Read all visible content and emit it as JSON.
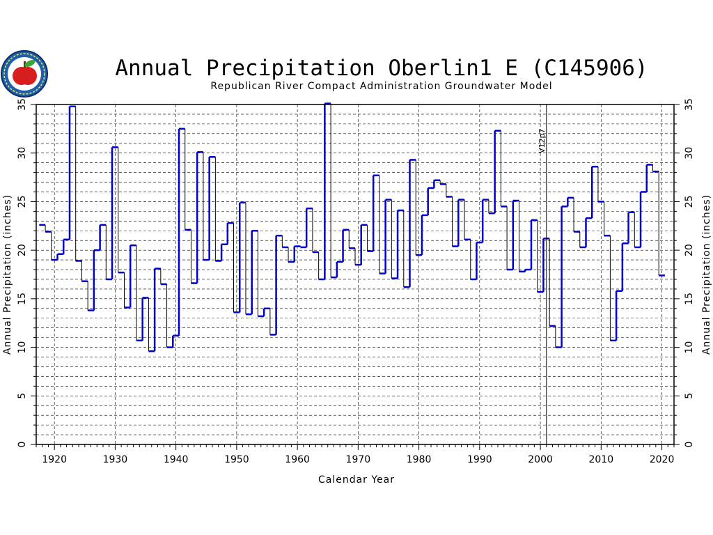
{
  "chart_data": {
    "type": "line",
    "step": true,
    "title": "Annual Precipitation Oberlin1 E (C145906)",
    "subtitle": "Republican River Compact Administration Groundwater Model",
    "xlabel": "Calendar Year",
    "ylabel": "Annual Precipitation (inches)",
    "ylabel_right": "Annual Precipitation (inches)",
    "xlim": [
      1917,
      2022
    ],
    "ylim": [
      0,
      35
    ],
    "x_ticks": [
      1920,
      1930,
      1940,
      1950,
      1960,
      1970,
      1980,
      1990,
      2000,
      2010,
      2020
    ],
    "y_ticks": [
      0,
      5,
      10,
      15,
      20,
      25,
      30,
      35
    ],
    "grid": true,
    "annotation": {
      "label": "V12p7",
      "x": 2001
    },
    "colors": {
      "series_before": "#0000cc",
      "series_after": "#000000",
      "frame": "#000000"
    },
    "logo": "apple-seal-icon",
    "series": [
      {
        "x": [
          1918,
          1919,
          1920,
          1921,
          1922,
          1923,
          1924,
          1925,
          1926,
          1927,
          1928,
          1929,
          1930,
          1931,
          1932,
          1933,
          1934,
          1935,
          1936,
          1937,
          1938,
          1939,
          1940,
          1941,
          1942,
          1943,
          1944,
          1945,
          1946,
          1947,
          1948,
          1949,
          1950,
          1951,
          1952,
          1953,
          1954,
          1955,
          1956,
          1957,
          1958,
          1959,
          1960,
          1961,
          1962,
          1963,
          1964,
          1965,
          1966,
          1967,
          1968,
          1969,
          1970,
          1971,
          1972,
          1973,
          1974,
          1975,
          1976,
          1977,
          1978,
          1979,
          1980,
          1981,
          1982,
          1983,
          1984,
          1985,
          1986,
          1987,
          1988,
          1989,
          1990,
          1991,
          1992,
          1993,
          1994,
          1995,
          1996,
          1997,
          1998,
          1999,
          2000,
          2001,
          2002,
          2003,
          2004,
          2005,
          2006,
          2007,
          2008,
          2009,
          2010,
          2011,
          2012,
          2013,
          2014,
          2015,
          2016,
          2017,
          2018,
          2019,
          2020
        ],
        "values": [
          22.6,
          21.9,
          19.0,
          19.6,
          21.1,
          34.8,
          18.9,
          16.8,
          13.8,
          20.0,
          22.6,
          17.0,
          30.6,
          17.7,
          14.1,
          20.5,
          10.7,
          15.1,
          9.6,
          18.1,
          16.5,
          10.0,
          11.2,
          32.5,
          22.1,
          16.6,
          30.1,
          19.0,
          29.6,
          18.9,
          20.6,
          22.8,
          13.6,
          24.9,
          13.4,
          22.0,
          13.2,
          14.0,
          11.3,
          21.5,
          20.3,
          18.8,
          20.4,
          20.3,
          24.3,
          19.8,
          17.0,
          35.1,
          17.2,
          18.8,
          22.1,
          20.2,
          18.5,
          22.6,
          19.9,
          27.7,
          17.6,
          25.2,
          17.1,
          24.1,
          16.2,
          29.3,
          19.5,
          23.6,
          26.4,
          27.2,
          26.8,
          25.5,
          20.4,
          25.2,
          21.1,
          17.0,
          20.8,
          25.2,
          23.8,
          32.3,
          24.5,
          18.0,
          25.1,
          17.8,
          18.0,
          23.1,
          15.7,
          21.2,
          12.2,
          10.0,
          24.5,
          25.4,
          21.9,
          20.3,
          23.3,
          28.6,
          25.0,
          21.5,
          10.7,
          15.8,
          20.7,
          23.9,
          20.3,
          26.0,
          28.8,
          28.1,
          17.4
        ]
      }
    ]
  }
}
